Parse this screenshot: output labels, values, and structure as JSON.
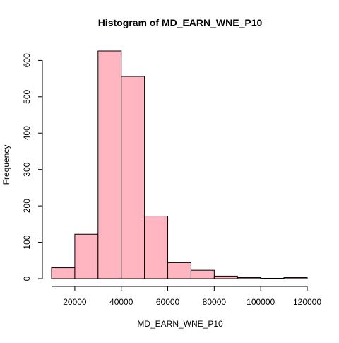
{
  "chart_data": {
    "type": "bar",
    "title": "Histogram of MD_EARN_WNE_P10",
    "xlabel": "MD_EARN_WNE_P10",
    "ylabel": "Frequency",
    "bins": [
      {
        "start": 10000,
        "end": 20000,
        "count": 30
      },
      {
        "start": 20000,
        "end": 30000,
        "count": 122
      },
      {
        "start": 30000,
        "end": 40000,
        "count": 626
      },
      {
        "start": 40000,
        "end": 50000,
        "count": 556
      },
      {
        "start": 50000,
        "end": 60000,
        "count": 172
      },
      {
        "start": 60000,
        "end": 70000,
        "count": 44
      },
      {
        "start": 70000,
        "end": 80000,
        "count": 23
      },
      {
        "start": 80000,
        "end": 90000,
        "count": 7
      },
      {
        "start": 90000,
        "end": 100000,
        "count": 3
      },
      {
        "start": 100000,
        "end": 110000,
        "count": 1
      },
      {
        "start": 110000,
        "end": 120000,
        "count": 3
      }
    ],
    "xlim": [
      10000,
      120000
    ],
    "ylim": [
      0,
      626
    ],
    "x_ticks": [
      20000,
      40000,
      60000,
      80000,
      100000,
      120000
    ],
    "y_ticks": [
      0,
      100,
      200,
      300,
      400,
      500,
      600
    ],
    "bar_color": "#ffb6c1",
    "bar_border_color": "#000000",
    "grid": false,
    "legend": "none"
  }
}
